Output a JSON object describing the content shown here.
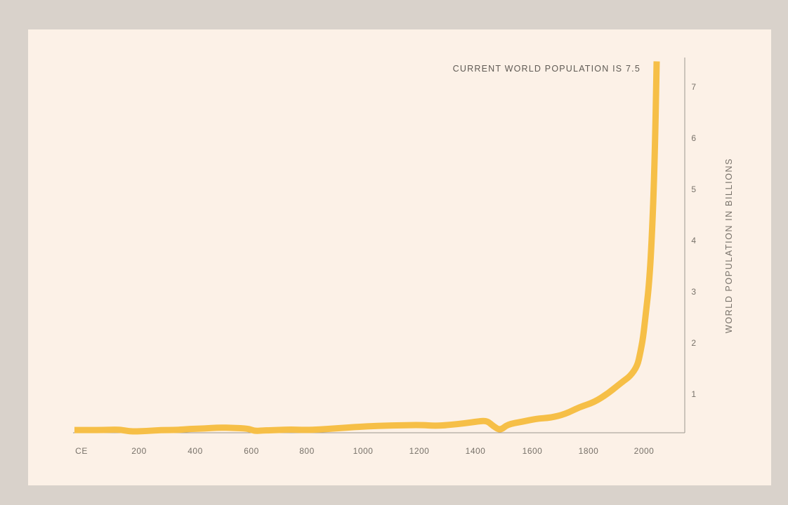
{
  "chart_data": {
    "type": "line",
    "title": "",
    "xlabel": "",
    "ylabel": "WORLD POPULATION IN BILLIONS",
    "x_tick_labels": [
      "CE",
      "200",
      "400",
      "600",
      "800",
      "1000",
      "1200",
      "1400",
      "1600",
      "1800",
      "2000"
    ],
    "y_tick_labels": [
      "1",
      "2",
      "3",
      "4",
      "5",
      "6",
      "7"
    ],
    "annotation": "CURRENT WORLD POPULATION IS 7.5",
    "xlim": [
      0,
      2130
    ],
    "ylim": [
      0,
      7.5
    ],
    "y_axis_position": "right",
    "grid": false,
    "legend": "none",
    "colors": {
      "line": "#f6bf47",
      "background": "#fcf1e7",
      "outer": "#d9d2cb",
      "axis": "#9d978f",
      "text": "#777169"
    },
    "series": [
      {
        "x": [
          0,
          50,
          100,
          150,
          175,
          200,
          250,
          300,
          350,
          400,
          450,
          500,
          550,
          600,
          625,
          650,
          700,
          750,
          800,
          850,
          900,
          1000,
          1100,
          1200,
          1250,
          1300,
          1350,
          1400,
          1430,
          1450,
          1475,
          1500,
          1550,
          1600,
          1650,
          1700,
          1750,
          1800,
          1850,
          1900,
          1925,
          1950,
          1960,
          1970,
          1980,
          1990,
          2000,
          2010,
          2017
        ],
        "y": [
          0.3,
          0.3,
          0.3,
          0.31,
          0.29,
          0.27,
          0.28,
          0.3,
          0.3,
          0.32,
          0.33,
          0.35,
          0.34,
          0.33,
          0.28,
          0.29,
          0.3,
          0.31,
          0.3,
          0.31,
          0.33,
          0.37,
          0.39,
          0.4,
          0.38,
          0.4,
          0.43,
          0.47,
          0.48,
          0.38,
          0.29,
          0.41,
          0.46,
          0.52,
          0.54,
          0.61,
          0.75,
          0.84,
          1.02,
          1.25,
          1.35,
          1.55,
          1.8,
          2.1,
          2.6,
          3.1,
          4.0,
          5.5,
          7.5
        ]
      }
    ]
  }
}
